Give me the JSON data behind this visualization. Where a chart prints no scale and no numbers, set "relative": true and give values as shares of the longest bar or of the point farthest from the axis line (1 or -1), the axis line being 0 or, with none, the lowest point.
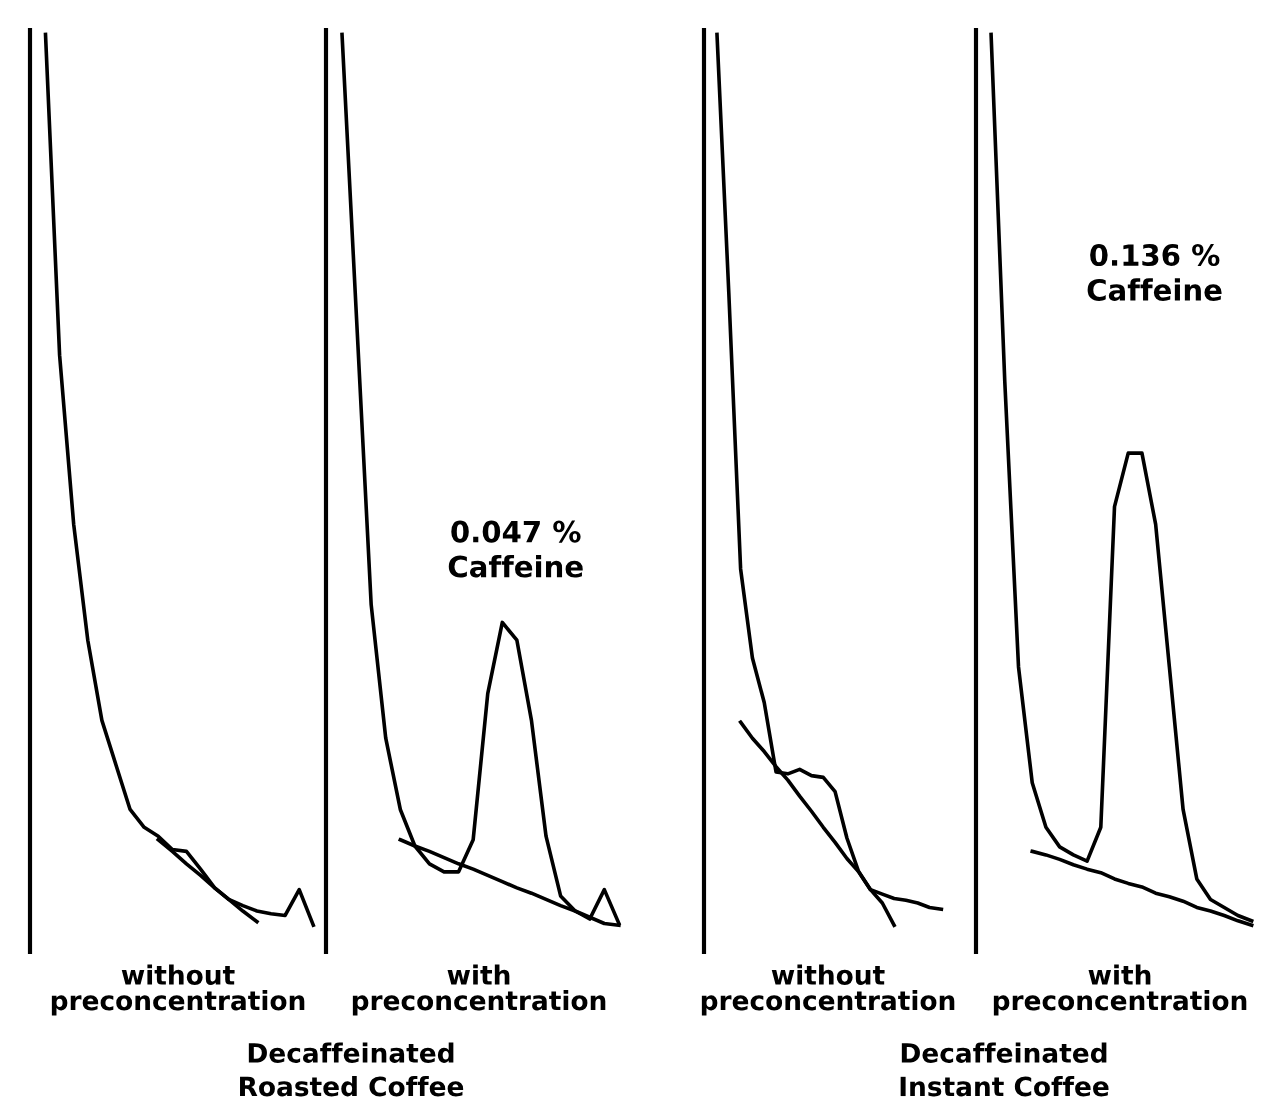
{
  "chart_data": [
    {
      "type": "line",
      "relative": true,
      "xlabel": "without\npreconcentration",
      "annotations": [
        "Decaffeinated\nRoasted Coffee"
      ],
      "categories": [
        null,
        null,
        null,
        null,
        null,
        null,
        null,
        null,
        null,
        null,
        null,
        null,
        null,
        null,
        null,
        null,
        null,
        null,
        null,
        null
      ],
      "series": [
        {
          "color": "#000000",
          "values": [
            1,
            0.64,
            0.45,
            0.32,
            0.23,
            0.18,
            0.13,
            0.11,
            0.1,
            0.085,
            0.083,
            0.063,
            0.042,
            0.029,
            0.022,
            0.016,
            0.013,
            0.011,
            0.04,
            0
          ]
        },
        {
          "color": "#000000",
          "values": [
            null,
            null,
            null,
            null,
            null,
            null,
            null,
            null,
            0.096,
            0.083,
            0.069,
            0.056,
            0.042,
            0.029,
            0.016,
            0.004,
            null,
            null,
            null,
            null
          ]
        }
      ]
    },
    {
      "type": "line",
      "relative": true,
      "xlabel": "with\npreconcentration",
      "annotations": [
        "0.047 %\nCaffeine"
      ],
      "categories": [
        null,
        null,
        null,
        null,
        null,
        null,
        null,
        null,
        null,
        null,
        null,
        null,
        null,
        null,
        null,
        null,
        null,
        null,
        null,
        null
      ],
      "series": [
        {
          "color": "#000000",
          "values": [
            1,
            0.68,
            0.36,
            0.21,
            0.13,
            0.089,
            0.069,
            0.06,
            0.06,
            0.096,
            0.26,
            0.34,
            0.32,
            0.23,
            0.1,
            0.033,
            0.016,
            0.007,
            0.04,
            0.002
          ]
        },
        {
          "color": "#000000",
          "values": [
            null,
            null,
            null,
            null,
            0.096,
            0.089,
            0.083,
            0.076,
            0.069,
            0.063,
            0.056,
            0.049,
            0.042,
            0.036,
            0.029,
            0.022,
            0.016,
            0.009,
            0.002,
            0
          ]
        }
      ]
    },
    {
      "type": "line",
      "relative": true,
      "xlabel": "without\npreconcentration",
      "annotations": [
        "Decaffeinated\nInstant Coffee"
      ],
      "categories": [
        null,
        null,
        null,
        null,
        null,
        null,
        null,
        null,
        null,
        null,
        null,
        null,
        null,
        null,
        null,
        null,
        null,
        null,
        null,
        null
      ],
      "series": [
        {
          "color": "#000000",
          "values": [
            1,
            0.71,
            0.4,
            0.3,
            0.25,
            0.172,
            0.17,
            0.175,
            0.168,
            0.166,
            0.15,
            0.098,
            0.06,
            0.04,
            0.035,
            0.03,
            0.028,
            0.025,
            0.02,
            0.018
          ]
        },
        {
          "color": "#000000",
          "values": [
            null,
            null,
            0.228,
            0.21,
            0.195,
            0.178,
            0.163,
            0.145,
            0.128,
            0.11,
            0.093,
            0.075,
            0.06,
            0.04,
            0.025,
            0,
            null,
            null,
            null,
            null
          ]
        }
      ]
    },
    {
      "type": "line",
      "relative": true,
      "xlabel": "with\npreconcentration",
      "annotations": [
        "0.136 %\nCaffeine"
      ],
      "categories": [
        null,
        null,
        null,
        null,
        null,
        null,
        null,
        null,
        null,
        null,
        null,
        null,
        null,
        null,
        null,
        null,
        null,
        null,
        null,
        null
      ],
      "series": [
        {
          "color": "#000000",
          "values": [
            1,
            0.61,
            0.29,
            0.16,
            0.11,
            0.088,
            0.079,
            0.072,
            0.11,
            0.47,
            0.53,
            0.53,
            0.45,
            0.29,
            0.13,
            0.052,
            0.029,
            0.02,
            0.011,
            0.005
          ]
        },
        {
          "color": "#000000",
          "values": [
            null,
            null,
            null,
            0.083,
            0.079,
            0.074,
            0.068,
            0.063,
            0.059,
            0.052,
            0.047,
            0.043,
            0.036,
            0.032,
            0.027,
            0.02,
            0.016,
            0.011,
            0.005,
            0
          ]
        }
      ]
    }
  ]
}
